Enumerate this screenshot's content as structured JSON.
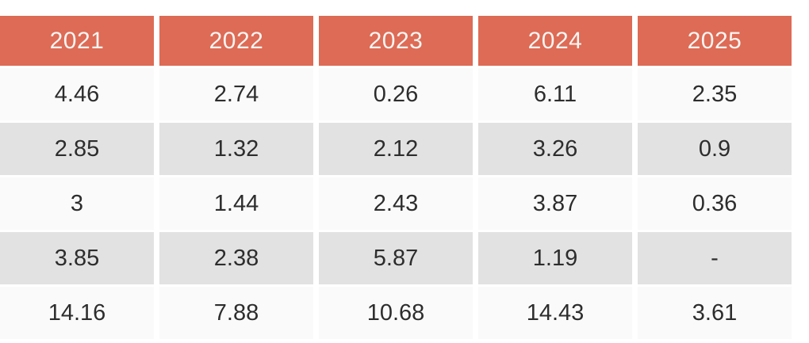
{
  "table": {
    "columns": [
      "2021",
      "2022",
      "2023",
      "2024",
      "2025"
    ],
    "rows": [
      [
        "4.46",
        "2.74",
        "0.26",
        "6.11",
        "2.35"
      ],
      [
        "2.85",
        "1.32",
        "2.12",
        "3.26",
        "0.9"
      ],
      [
        "3",
        "1.44",
        "2.43",
        "3.87",
        "0.36"
      ],
      [
        "3.85",
        "2.38",
        "5.87",
        "1.19",
        "-"
      ],
      [
        "14.16",
        "7.88",
        "10.68",
        "14.43",
        "3.61"
      ]
    ]
  },
  "colors": {
    "header_bg": "#dd6b55",
    "header_text": "#faf5f3",
    "row_odd_bg": "#fafafa",
    "row_even_bg": "#e2e2e2",
    "cell_text": "#2d2d2d",
    "page_bg": "#ffffff"
  },
  "chart_data": {
    "type": "table",
    "title": "",
    "categories": [
      "2021",
      "2022",
      "2023",
      "2024",
      "2025"
    ],
    "series": [
      {
        "name": "row-1",
        "values": [
          4.46,
          2.74,
          0.26,
          6.11,
          2.35
        ]
      },
      {
        "name": "row-2",
        "values": [
          2.85,
          1.32,
          2.12,
          3.26,
          0.9
        ]
      },
      {
        "name": "row-3",
        "values": [
          3,
          1.44,
          2.43,
          3.87,
          0.36
        ]
      },
      {
        "name": "row-4",
        "values": [
          3.85,
          2.38,
          5.87,
          1.19,
          null
        ]
      },
      {
        "name": "row-5",
        "values": [
          14.16,
          7.88,
          10.68,
          14.43,
          3.61
        ]
      }
    ],
    "notes": "Cell row-4 / 2025 shown as dash (-). Header row styled salmon with white text; data rows alternate off-white and light gray."
  }
}
